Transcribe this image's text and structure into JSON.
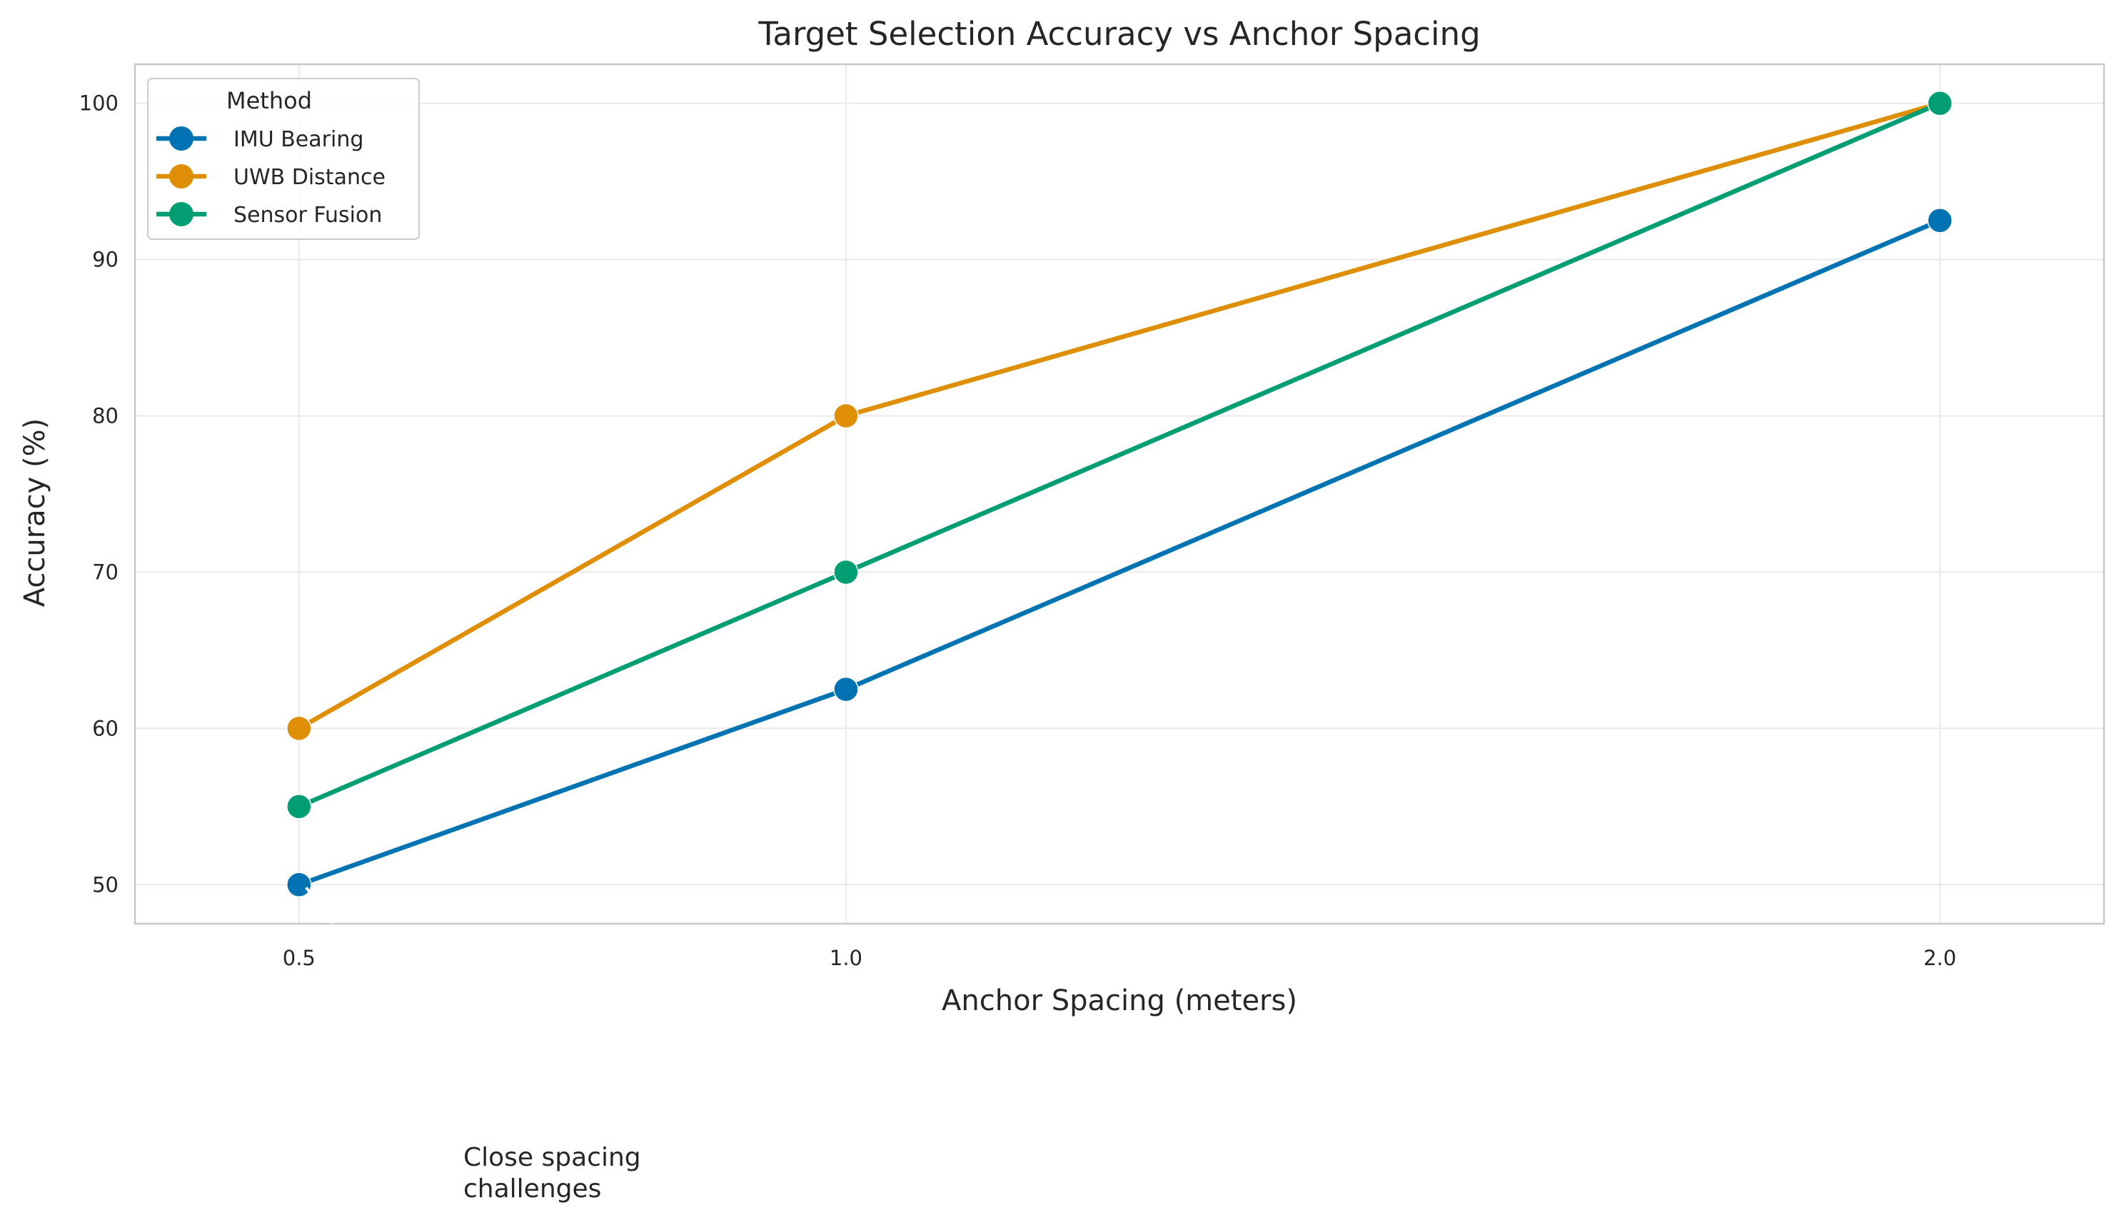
{
  "chart_data": {
    "type": "line",
    "title": "Target Selection Accuracy vs Anchor Spacing",
    "xlabel": "Anchor Spacing (meters)",
    "ylabel": "Accuracy (%)",
    "x": [
      0.5,
      1.0,
      2.0
    ],
    "x_tick_labels": [
      "0.5",
      "1.0",
      "2.0"
    ],
    "y_ticks": [
      50,
      60,
      70,
      80,
      90,
      100
    ],
    "xlim": [
      0.35,
      2.15
    ],
    "ylim": [
      47.5,
      102.5
    ],
    "grid": true,
    "legend": {
      "title": "Method",
      "placement": "top-left"
    },
    "series": [
      {
        "name": "IMU Bearing",
        "color": "#0173b2",
        "values": [
          50,
          62.5,
          92.5
        ]
      },
      {
        "name": "UWB Distance",
        "color": "#de8f05",
        "values": [
          60,
          80,
          100
        ]
      },
      {
        "name": "Sensor Fusion",
        "color": "#029e73",
        "values": [
          55,
          70,
          100
        ]
      }
    ],
    "annotations": [
      {
        "text_lines": [
          "Close spacing",
          "challenges"
        ],
        "target_x": 0.5,
        "target_y": 50
      }
    ]
  }
}
